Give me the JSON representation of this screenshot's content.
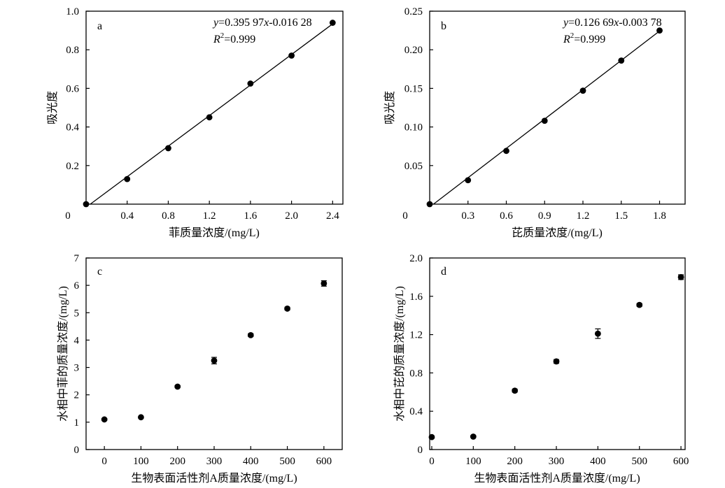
{
  "chart_data": [
    {
      "type": "scatter",
      "panel_label": "a",
      "xlabel": "菲质量浓度/(mg/L)",
      "ylabel": "吸光度",
      "xlim": [
        0,
        2.5
      ],
      "ylim": [
        0,
        1.0
      ],
      "xticks": [
        0.4,
        0.8,
        1.2,
        1.6,
        2.0,
        2.4
      ],
      "xtick_labels": [
        "0.4",
        "0.8",
        "1.2",
        "1.6",
        "2.0",
        "2.4"
      ],
      "yticks": [
        0.2,
        0.4,
        0.6,
        0.8,
        1.0
      ],
      "ytick_labels": [
        "0.2",
        "0.4",
        "0.6",
        "0.8",
        "1.0"
      ],
      "origin_label": "0",
      "x": [
        0,
        0.4,
        0.8,
        1.2,
        1.6,
        2.0,
        2.4
      ],
      "y": [
        0.0,
        0.13,
        0.29,
        0.45,
        0.625,
        0.77,
        0.94
      ],
      "fit": {
        "slope": 0.39597,
        "intercept": -0.01628
      },
      "equation": {
        "y_var": "y",
        "rhs_1": "=0.395 97",
        "x_var": "x",
        "rhs_2": "-0.016 28",
        "r_var": "R",
        "r_sup": "2",
        "r_val": "=0.999"
      }
    },
    {
      "type": "scatter",
      "panel_label": "b",
      "xlabel": "芘质量浓度/(mg/L)",
      "ylabel": "吸光度",
      "xlim": [
        0,
        2.0
      ],
      "ylim": [
        0,
        0.25
      ],
      "xticks": [
        0.3,
        0.6,
        0.9,
        1.2,
        1.5,
        1.8
      ],
      "xtick_labels": [
        "0.3",
        "0.6",
        "0.9",
        "1.2",
        "1.5",
        "1.8"
      ],
      "yticks": [
        0.05,
        0.1,
        0.15,
        0.2,
        0.25
      ],
      "ytick_labels": [
        "0.05",
        "0.10",
        "0.15",
        "0.20",
        "0.25"
      ],
      "origin_label": "0",
      "x": [
        0,
        0.3,
        0.6,
        0.9,
        1.2,
        1.5,
        1.8
      ],
      "y": [
        0.0,
        0.031,
        0.069,
        0.108,
        0.147,
        0.186,
        0.225
      ],
      "fit": {
        "slope": 0.12669,
        "intercept": -0.00378
      },
      "equation": {
        "y_var": "y",
        "rhs_1": "=0.126 69",
        "x_var": "x",
        "rhs_2": "-0.003 78",
        "r_var": "R",
        "r_sup": "2",
        "r_val": "=0.999"
      }
    },
    {
      "type": "scatter",
      "panel_label": "c",
      "xlabel": "生物表面活性剂A质量浓度/(mg/L)",
      "ylabel": "水相中菲的质量浓度/(mg/L)",
      "xlim": [
        -50,
        650
      ],
      "ylim": [
        0,
        7
      ],
      "xticks": [
        0,
        100,
        200,
        300,
        400,
        500,
        600
      ],
      "xtick_labels": [
        "0",
        "100",
        "200",
        "300",
        "400",
        "500",
        "600"
      ],
      "yticks": [
        0,
        1,
        2,
        3,
        4,
        5,
        6,
        7
      ],
      "ytick_labels": [
        "0",
        "1",
        "2",
        "3",
        "4",
        "5",
        "6",
        "7"
      ],
      "x": [
        0,
        100,
        200,
        300,
        400,
        500,
        600
      ],
      "y": [
        1.1,
        1.18,
        2.3,
        3.25,
        4.18,
        5.15,
        6.07
      ],
      "yerr": [
        0.03,
        0.03,
        0.04,
        0.12,
        0.05,
        0.05,
        0.1
      ]
    },
    {
      "type": "scatter",
      "panel_label": "d",
      "xlabel": "生物表面活性剂A质量浓度/(mg/L)",
      "ylabel": "水相中芘的质量浓度/(mg/L)",
      "xlim": [
        -5,
        610
      ],
      "ylim": [
        0,
        2.0
      ],
      "xticks": [
        0,
        100,
        200,
        300,
        400,
        500,
        600
      ],
      "xtick_labels": [
        "0",
        "100",
        "200",
        "300",
        "400",
        "500",
        "600"
      ],
      "yticks": [
        0,
        0.4,
        0.8,
        1.2,
        1.6,
        2.0
      ],
      "ytick_labels": [
        "0",
        "0.4",
        "0.8",
        "1.2",
        "1.6",
        "2.0"
      ],
      "x": [
        0,
        100,
        200,
        300,
        400,
        500,
        600
      ],
      "y": [
        0.13,
        0.135,
        0.615,
        0.92,
        1.21,
        1.51,
        1.8
      ],
      "yerr": [
        0.01,
        0.01,
        0.015,
        0.02,
        0.05,
        0.015,
        0.025
      ]
    }
  ]
}
